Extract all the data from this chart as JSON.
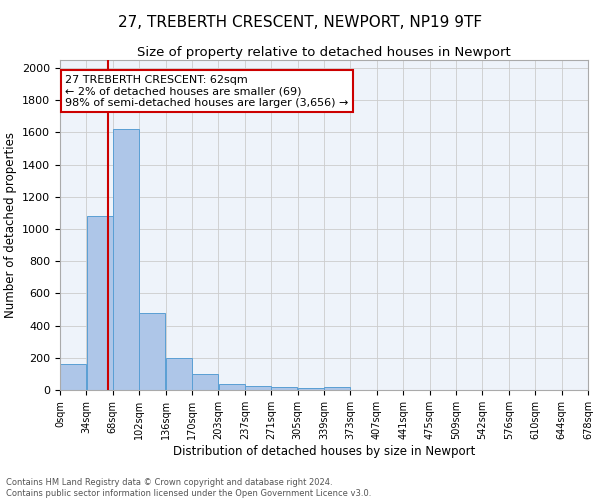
{
  "title": "27, TREBERTH CRESCENT, NEWPORT, NP19 9TF",
  "subtitle": "Size of property relative to detached houses in Newport",
  "xlabel": "Distribution of detached houses by size in Newport",
  "ylabel": "Number of detached properties",
  "footnote1": "Contains HM Land Registry data © Crown copyright and database right 2024.",
  "footnote2": "Contains public sector information licensed under the Open Government Licence v3.0.",
  "bin_labels": [
    "0sqm",
    "34sqm",
    "68sqm",
    "102sqm",
    "136sqm",
    "170sqm",
    "203sqm",
    "237sqm",
    "271sqm",
    "305sqm",
    "339sqm",
    "373sqm",
    "407sqm",
    "441sqm",
    "475sqm",
    "509sqm",
    "542sqm",
    "576sqm",
    "610sqm",
    "644sqm",
    "678sqm"
  ],
  "bar_values": [
    160,
    1080,
    1620,
    480,
    200,
    100,
    38,
    25,
    18,
    15,
    18,
    0,
    0,
    0,
    0,
    0,
    0,
    0,
    0,
    0
  ],
  "bar_color": "#aec6e8",
  "bar_edge_color": "#5a9fd4",
  "grid_color": "#cccccc",
  "bg_color": "#eef3fa",
  "annotation_text": "27 TREBERTH CRESCENT: 62sqm\n← 2% of detached houses are smaller (69)\n98% of semi-detached houses are larger (3,656) →",
  "annotation_box_color": "#ffffff",
  "annotation_border_color": "#cc0000",
  "ylim": [
    0,
    2050
  ],
  "bin_width": 34,
  "property_sqm": 62,
  "title_fontsize": 11,
  "subtitle_fontsize": 9.5,
  "axis_label_fontsize": 8.5,
  "tick_fontsize": 7,
  "annotation_fontsize": 8,
  "footnote_fontsize": 6
}
